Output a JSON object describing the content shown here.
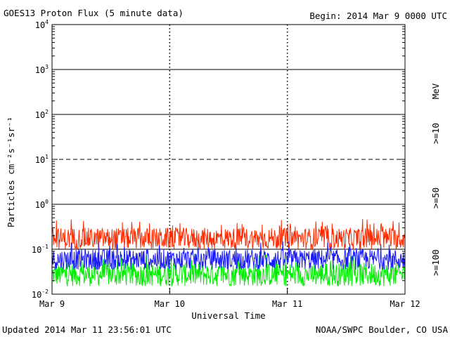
{
  "header": {
    "title": "GOES13 Proton Flux (5 minute data)",
    "begin": "Begin: 2014 Mar 9 0000 UTC"
  },
  "footer": {
    "updated": "Updated 2014 Mar 11 23:56:01 UTC",
    "source": "NOAA/SWPC Boulder, CO USA"
  },
  "chart_data": {
    "type": "line",
    "title": "GOES13 Proton Flux (5 minute data)",
    "xlabel": "Universal Time",
    "ylabel": "Particles cm⁻²s⁻¹sr⁻¹",
    "y_scale": "log",
    "ylim": [
      0.01,
      10000
    ],
    "y_ticks": [
      {
        "base": "10",
        "exp": "-2",
        "value": 0.01
      },
      {
        "base": "10",
        "exp": "-1",
        "value": 0.1
      },
      {
        "base": "10",
        "exp": "0",
        "value": 1
      },
      {
        "base": "10",
        "exp": "1",
        "value": 10
      },
      {
        "base": "10",
        "exp": "2",
        "value": 100
      },
      {
        "base": "10",
        "exp": "3",
        "value": 1000
      },
      {
        "base": "10",
        "exp": "4",
        "value": 10000
      }
    ],
    "xlim": [
      "2014-03-09",
      "2014-03-12"
    ],
    "x_ticks": [
      {
        "label": "Mar 9",
        "date": "2014-03-09"
      },
      {
        "label": "Mar 10",
        "date": "2014-03-10"
      },
      {
        "label": "Mar 11",
        "date": "2014-03-11"
      },
      {
        "label": "Mar 12",
        "date": "2014-03-12"
      }
    ],
    "horizontal_lines": [
      {
        "value": 10,
        "style": "dashed"
      },
      {
        "value": 1,
        "style": "solid"
      },
      {
        "value": 1000,
        "style": "solid"
      },
      {
        "value": 100,
        "style": "solid"
      },
      {
        "value": 0.1,
        "style": "solid"
      }
    ],
    "energy_unit": "MeV",
    "series": [
      {
        "name": ">=10",
        "color": "#ff2a00",
        "typical_range": [
          0.1,
          0.3
        ]
      },
      {
        "name": ">=50",
        "color": "#1a1aff",
        "typical_range": [
          0.035,
          0.1
        ]
      },
      {
        "name": ">=100",
        "color": "#00ee00",
        "typical_range": [
          0.015,
          0.05
        ]
      }
    ]
  }
}
